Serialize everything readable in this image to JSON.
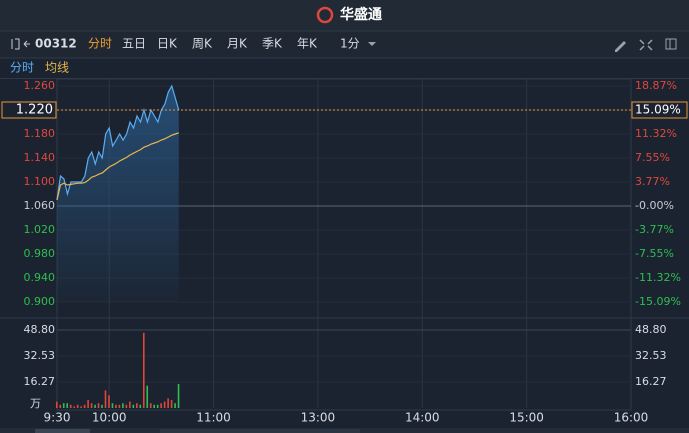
{
  "header": {
    "brand": "华盛通"
  },
  "toolbar": {
    "symbol": "00312",
    "periods": [
      "分时",
      "五日",
      "日K",
      "周K",
      "月K",
      "季K",
      "年K"
    ],
    "active_period": 0,
    "interval": "1分"
  },
  "chart_data": {
    "type": "line",
    "x": [
      "9:30",
      "9:32",
      "9:34",
      "9:36",
      "9:38",
      "9:40",
      "9:42",
      "9:44",
      "9:46",
      "9:48",
      "9:50",
      "9:52",
      "9:54",
      "9:56",
      "9:58",
      "10:00",
      "10:02",
      "10:04",
      "10:06",
      "10:08",
      "10:10",
      "10:12",
      "10:14",
      "10:16",
      "10:18",
      "10:20",
      "10:22",
      "10:24",
      "10:26",
      "10:28",
      "10:30",
      "10:32",
      "10:34",
      "10:36",
      "10:38",
      "10:40"
    ],
    "xlim": [
      "9:30",
      "16:00"
    ],
    "breaks": [
      [
        "12:00",
        "13:00"
      ]
    ],
    "xticks": [
      "9:30",
      "10:00",
      "11:00",
      "13:00",
      "14:00",
      "15:00",
      "16:00"
    ],
    "series": [
      {
        "name": "分时",
        "color": "#5aaef5",
        "values": [
          1.07,
          1.11,
          1.105,
          1.08,
          1.1,
          1.1,
          1.1,
          1.1,
          1.11,
          1.14,
          1.15,
          1.13,
          1.15,
          1.14,
          1.18,
          1.19,
          1.16,
          1.17,
          1.18,
          1.17,
          1.18,
          1.2,
          1.19,
          1.21,
          1.2,
          1.22,
          1.2,
          1.22,
          1.21,
          1.2,
          1.22,
          1.23,
          1.25,
          1.26,
          1.24,
          1.22
        ]
      },
      {
        "name": "均线",
        "color": "#e8b64a",
        "values": [
          1.07,
          1.095,
          1.098,
          1.095,
          1.096,
          1.097,
          1.098,
          1.098,
          1.099,
          1.103,
          1.108,
          1.11,
          1.113,
          1.115,
          1.12,
          1.125,
          1.128,
          1.131,
          1.135,
          1.138,
          1.141,
          1.145,
          1.148,
          1.151,
          1.154,
          1.158,
          1.16,
          1.163,
          1.165,
          1.167,
          1.17,
          1.172,
          1.175,
          1.178,
          1.18,
          1.182
        ]
      }
    ],
    "base_price": 1.06,
    "last_price": {
      "value": 1.22,
      "label": "1.220",
      "change": 15.09,
      "change_label": "15.09%"
    },
    "ylim": [
      0.9,
      1.26
    ],
    "yticks": [
      {
        "value": 1.26,
        "label": "1.260"
      },
      {
        "value": 1.22,
        "label": "1.220"
      },
      {
        "value": 1.18,
        "label": "1.180"
      },
      {
        "value": 1.14,
        "label": "1.140"
      },
      {
        "value": 1.1,
        "label": "1.100"
      },
      {
        "value": 1.06,
        "label": "1.060"
      },
      {
        "value": 1.02,
        "label": "1.020"
      },
      {
        "value": 0.98,
        "label": "0.980"
      },
      {
        "value": 0.94,
        "label": "0.940"
      },
      {
        "value": 0.9,
        "label": "0.900"
      }
    ],
    "y2lim": [
      -15.09,
      18.87
    ],
    "y2ticks": [
      {
        "value": 18.87,
        "label": "18.87%"
      },
      {
        "value": 15.09,
        "label": "15.09%"
      },
      {
        "value": 11.32,
        "label": "11.32%"
      },
      {
        "value": 7.55,
        "label": "7.55%"
      },
      {
        "value": 3.77,
        "label": "3.77%"
      },
      {
        "value": 0,
        "label": "-0.00%"
      },
      {
        "value": -3.77,
        "label": "-3.77%"
      },
      {
        "value": -7.55,
        "label": "-7.55%"
      },
      {
        "value": -11.32,
        "label": "-11.32%"
      },
      {
        "value": -15.09,
        "label": "-15.09%"
      }
    ],
    "up_color": "#e0473c",
    "down_color": "#2fbf4f",
    "volume": {
      "unit": "万",
      "ylim": [
        0,
        48.8
      ],
      "yticks": [
        {
          "value": 48.8,
          "label": "48.80"
        },
        {
          "value": 32.53,
          "label": "32.53"
        },
        {
          "value": 16.27,
          "label": "16.27"
        }
      ],
      "values": [
        4,
        2,
        3,
        3,
        2,
        1,
        2,
        1,
        2,
        5,
        3,
        2,
        3,
        2,
        11,
        8,
        3,
        2,
        2,
        3,
        2,
        4,
        2,
        3,
        2,
        47,
        14,
        3,
        2,
        2,
        3,
        4,
        6,
        5,
        3,
        15
      ]
    }
  }
}
